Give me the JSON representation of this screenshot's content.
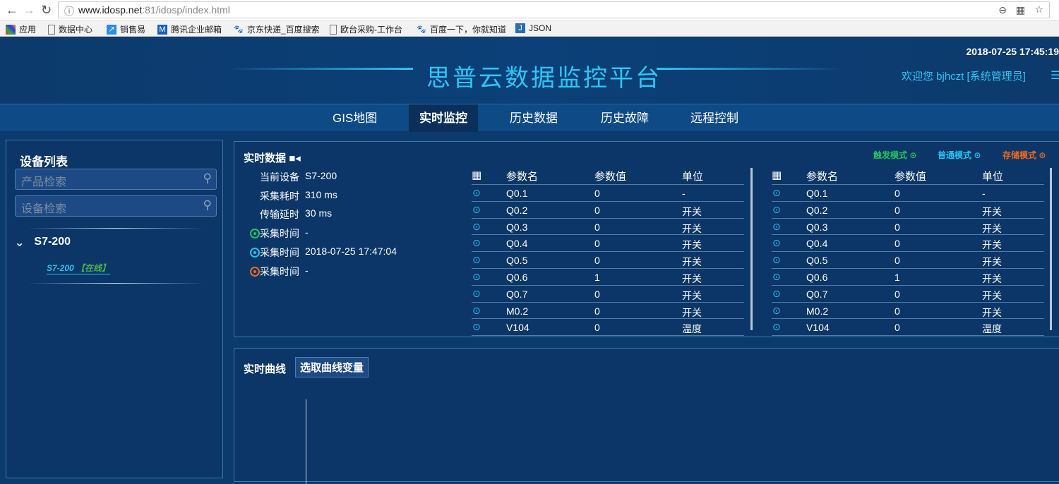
{
  "browser": {
    "url_host": "www.idosp.net",
    "url_path": ":81/idosp/index.html",
    "bookmarks": [
      "应用",
      "数据中心",
      "销售易",
      "腾讯企业邮箱",
      "京东快递_百度搜索",
      "欧台采购-工作台",
      "百度一下，你就知道",
      "JSON"
    ]
  },
  "header": {
    "title": "思普云数据监控平台",
    "clock": "2018-07-25 17:45:19",
    "welcome": "欢迎您  bjhczt [系统管理员]"
  },
  "nav": {
    "items": [
      "GIS地图",
      "实时监控",
      "历史数据",
      "历史故障",
      "远程控制"
    ],
    "active": 1
  },
  "sidebar": {
    "title": "设备列表",
    "product_search_placeholder": "产品检索",
    "device_search_placeholder": "设备检索",
    "group": "S7-200",
    "device_name": "S7-200",
    "device_status": "【在线】"
  },
  "realtime": {
    "title": "实时数据",
    "modes": [
      {
        "label": "触发模式",
        "color": "#22c55e"
      },
      {
        "label": "普通模式",
        "color": "#22c3ee"
      },
      {
        "label": "存储模式",
        "color": "#f26a1b"
      }
    ],
    "info": [
      {
        "label": "当前设备",
        "value": "S7-200"
      },
      {
        "label": "采集耗时",
        "value": "310 ms"
      },
      {
        "label": "传输延时",
        "value": "30 ms"
      },
      {
        "label": "采集时间",
        "value": "-",
        "color": "#22c55e"
      },
      {
        "label": "采集时间",
        "value": "2018-07-25 17:47:04",
        "color": "#22c3ee"
      },
      {
        "label": "采集时间",
        "value": "-",
        "color": "#f26a1b"
      }
    ],
    "columns": [
      "参数名",
      "参数值",
      "单位"
    ],
    "rows": [
      [
        "Q0.1",
        "0",
        "-"
      ],
      [
        "Q0.2",
        "0",
        "开关"
      ],
      [
        "Q0.3",
        "0",
        "开关"
      ],
      [
        "Q0.4",
        "0",
        "开关"
      ],
      [
        "Q0.5",
        "0",
        "开关"
      ],
      [
        "Q0.6",
        "1",
        "开关"
      ],
      [
        "Q0.7",
        "0",
        "开关"
      ],
      [
        "M0.2",
        "0",
        "开关"
      ],
      [
        "V104",
        "0",
        "温度"
      ]
    ]
  },
  "curves": {
    "title": "实时曲线",
    "pick_label": "选取曲线变量"
  }
}
